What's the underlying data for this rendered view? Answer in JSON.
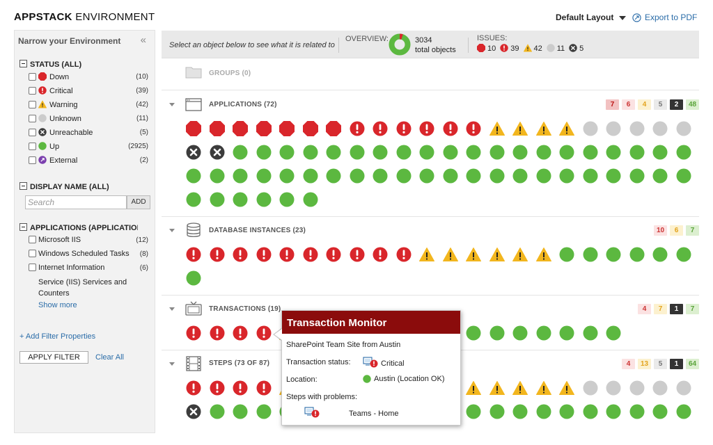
{
  "header": {
    "title_bold": "APPSTACK",
    "title_rest": "ENVIRONMENT",
    "layout_label": "Default Layout",
    "export_label": "Export to PDF"
  },
  "colors": {
    "down": "#d9262b",
    "critical": "#d9262b",
    "warning": "#f2b61e",
    "unknown": "#cccccc",
    "unreachable": "#3c3c3c",
    "up": "#5cb840",
    "external": "#7b3fae",
    "tooltip_header": "#8b0c0c",
    "link": "#2a6ca8"
  },
  "sidebar": {
    "title": "Narrow your Environment",
    "collapse_icon": "double-chevron-left-icon",
    "status_heading": "STATUS (ALL)",
    "statuses": [
      {
        "label": "Down",
        "count": "(10)",
        "icon": "down-icon"
      },
      {
        "label": "Critical",
        "count": "(39)",
        "icon": "critical-icon"
      },
      {
        "label": "Warning",
        "count": "(42)",
        "icon": "warning-icon"
      },
      {
        "label": "Unknown",
        "count": "(11)",
        "icon": "unknown-icon"
      },
      {
        "label": "Unreachable",
        "count": "(5)",
        "icon": "unreachable-icon"
      },
      {
        "label": "Up",
        "count": "(2925)",
        "icon": "up-icon"
      },
      {
        "label": "External",
        "count": "(2)",
        "icon": "external-icon"
      }
    ],
    "display_heading": "DISPLAY NAME (ALL)",
    "search_placeholder": "Search",
    "add_label": "ADD",
    "apps_heading": "APPLICATIONS (APPLICATIONS)",
    "apps": [
      {
        "label": "Microsoft IIS",
        "count": "(12)"
      },
      {
        "label": "Windows Scheduled Tasks",
        "count": "(8)"
      },
      {
        "label": "Internet Information",
        "count": "(6)"
      }
    ],
    "apps_third_line2": "Service (IIS) Services and",
    "apps_third_line3": "Counters",
    "show_more": "Show more",
    "add_filter": "+ Add Filter Properties",
    "apply_filter": "APPLY FILTER",
    "clear_all": "Clear All"
  },
  "summary": {
    "hint": "Select an object below to see what it is related to",
    "overview_label": "OVERVIEW:",
    "total_count": "3034",
    "total_label": "total objects",
    "issues_label": "ISSUES:",
    "issues": [
      {
        "icon": "down-icon",
        "count": "10"
      },
      {
        "icon": "critical-icon",
        "count": "39"
      },
      {
        "icon": "warning-icon",
        "count": "42"
      },
      {
        "icon": "unknown-icon",
        "count": "11"
      },
      {
        "icon": "unreachable-icon",
        "count": "5"
      }
    ]
  },
  "groups": [
    {
      "key": "groups",
      "title": "GROUPS (0)",
      "icon": "folder-icon",
      "badges": [],
      "rows": []
    },
    {
      "key": "applications",
      "title": "APPLICATIONS (72)",
      "icon": "window-icon",
      "badges": [
        {
          "type": "down",
          "value": "7"
        },
        {
          "type": "crit",
          "value": "6"
        },
        {
          "type": "warn",
          "value": "4"
        },
        {
          "type": "unk",
          "value": "5"
        },
        {
          "type": "unr",
          "value": "2"
        },
        {
          "type": "up",
          "value": "48"
        }
      ],
      "rows": [
        [
          {
            "s": "down",
            "n": 7
          },
          {
            "s": "critical",
            "n": 6
          },
          {
            "s": "warning",
            "n": 4
          },
          {
            "s": "unknown",
            "n": 5
          }
        ],
        [
          {
            "s": "unreachable",
            "n": 2
          },
          {
            "s": "up",
            "n": 20
          }
        ],
        [
          {
            "s": "up",
            "n": 22
          }
        ],
        [
          {
            "s": "up",
            "n": 6
          }
        ]
      ]
    },
    {
      "key": "database",
      "title": "DATABASE INSTANCES (23)",
      "icon": "database-icon",
      "badges": [
        {
          "type": "crit",
          "value": "10"
        },
        {
          "type": "warn",
          "value": "6"
        },
        {
          "type": "up",
          "value": "7"
        }
      ],
      "rows": [
        [
          {
            "s": "critical",
            "n": 10
          },
          {
            "s": "warning",
            "n": 6
          },
          {
            "s": "up",
            "n": 6
          }
        ],
        [
          {
            "s": "up",
            "n": 1
          }
        ]
      ]
    },
    {
      "key": "transactions",
      "title": "TRANSACTIONS (19)",
      "icon": "tv-icon",
      "badges": [
        {
          "type": "crit",
          "value": "4"
        },
        {
          "type": "warn",
          "value": "7"
        },
        {
          "type": "unr",
          "value": "1"
        },
        {
          "type": "up",
          "value": "7"
        }
      ],
      "rows": [
        [
          {
            "s": "critical",
            "n": 4
          },
          {
            "s": "warning",
            "n": 7
          },
          {
            "s": "unreachable",
            "n": 1
          },
          {
            "s": "up",
            "n": 7
          }
        ]
      ]
    },
    {
      "key": "steps",
      "title": "STEPS (73 OF 87)",
      "icon": "film-icon",
      "badges": [
        {
          "type": "crit",
          "value": "4"
        },
        {
          "type": "warn",
          "value": "13"
        },
        {
          "type": "unk",
          "value": "5"
        },
        {
          "type": "unr",
          "value": "1"
        },
        {
          "type": "up",
          "value": "64"
        }
      ],
      "rows": [
        [
          {
            "s": "critical",
            "n": 4
          },
          {
            "s": "warning",
            "n": 13
          },
          {
            "s": "unknown",
            "n": 5
          }
        ],
        [
          {
            "s": "unreachable",
            "n": 1
          },
          {
            "s": "up",
            "n": 21
          }
        ]
      ]
    }
  ],
  "tooltip": {
    "title": "Transaction Monitor",
    "name": "SharePoint Team Site from Austin",
    "status_label": "Transaction status:",
    "status_value": "Critical",
    "location_label": "Location:",
    "location_value": "Austin (Location OK)",
    "steps_label": "Steps with problems:",
    "step_name": "Teams - Home"
  }
}
